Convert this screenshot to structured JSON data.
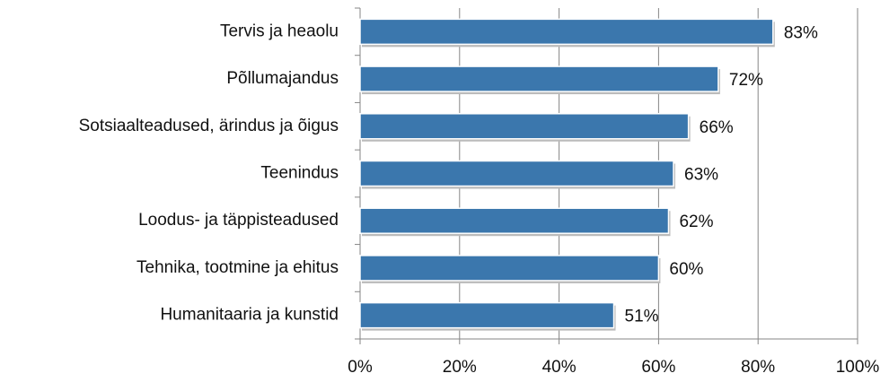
{
  "chart_data": {
    "type": "bar",
    "orientation": "horizontal",
    "categories": [
      "Tervis ja heaolu",
      "Põllumajandus",
      "Sotsiaalteadused, ärindus ja õigus",
      "Teenindus",
      "Loodus- ja täppisteadused",
      "Tehnika, tootmine ja ehitus",
      "Humanitaaria ja kunstid"
    ],
    "values": [
      83,
      72,
      66,
      63,
      62,
      60,
      51
    ],
    "value_labels": [
      "83%",
      "72%",
      "66%",
      "63%",
      "62%",
      "60%",
      "51%"
    ],
    "color": "#3b77ad",
    "xlim": [
      0,
      100
    ],
    "xticks": [
      {
        "value": 0,
        "label": "0%"
      },
      {
        "value": 20,
        "label": "20%"
      },
      {
        "value": 40,
        "label": "40%"
      },
      {
        "value": 60,
        "label": "60%"
      },
      {
        "value": 80,
        "label": "80%"
      },
      {
        "value": 100,
        "label": "100%"
      }
    ],
    "grid": true
  }
}
